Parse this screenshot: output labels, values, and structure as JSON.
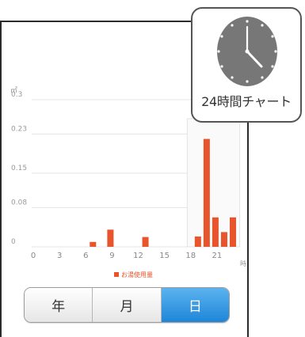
{
  "callout": {
    "label": "24時間チャート",
    "icon": "clock-icon"
  },
  "segmented": {
    "items": [
      "年",
      "月",
      "日"
    ],
    "selected": "日"
  },
  "chart_data": {
    "type": "bar",
    "y_unit": "㎥",
    "x_unit": "時",
    "xlim": [
      0,
      23
    ],
    "ylim": [
      0,
      0.3
    ],
    "x_ticks": [
      "0",
      "3",
      "6",
      "9",
      "12",
      "15",
      "18",
      "21"
    ],
    "y_ticks": [
      "0",
      "0.08",
      "0.15",
      "0.23",
      "0.3"
    ],
    "legend": "お湯使用量",
    "bar_color": "#e8542c",
    "grid": true,
    "x": [
      7,
      9,
      13,
      19,
      20,
      21,
      22,
      23
    ],
    "values": [
      0.01,
      0.035,
      0.02,
      0.021,
      0.22,
      0.06,
      0.03,
      0.06
    ]
  }
}
